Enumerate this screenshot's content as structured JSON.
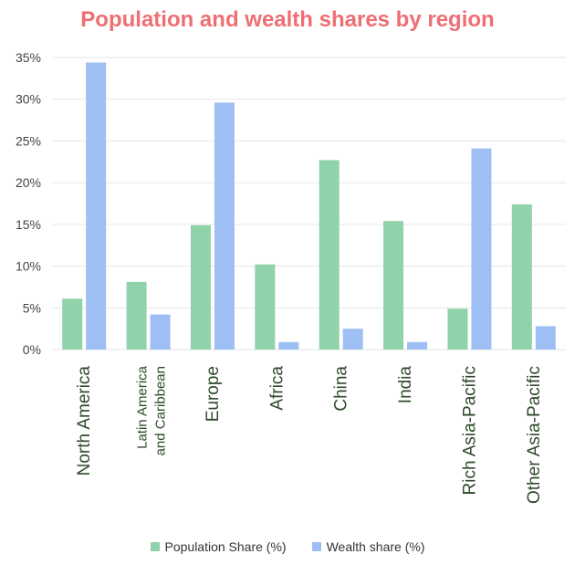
{
  "colors": {
    "title": "#ee6e73",
    "population": "#90d2aa",
    "wealth": "#9ebff3",
    "grid": "#e6e6e6",
    "axis_text": "#444444",
    "category_text": "#2e4a2a"
  },
  "chart_data": {
    "type": "bar",
    "title": "Population and wealth shares by region",
    "categories": [
      "North America",
      "Latin America\nand Caribbean",
      "Europe",
      "Africa",
      "China",
      "India",
      "Rich Asia-Pacific",
      "Other Asia-Pacific"
    ],
    "series": [
      {
        "name": "Population Share (%)",
        "values": [
          6.1,
          8.1,
          14.9,
          10.2,
          22.7,
          15.4,
          4.9,
          17.4
        ]
      },
      {
        "name": "Wealth share (%)",
        "values": [
          34.4,
          4.2,
          29.6,
          0.9,
          2.5,
          0.9,
          24.1,
          2.8
        ]
      }
    ],
    "ylim": [
      0,
      35
    ],
    "yticks": [
      "0%",
      "5%",
      "10%",
      "15%",
      "20%",
      "25%",
      "30%",
      "35%"
    ],
    "ytick_values": [
      0,
      5,
      10,
      15,
      20,
      25,
      30,
      35
    ],
    "grid": true,
    "legend_position": "bottom"
  }
}
